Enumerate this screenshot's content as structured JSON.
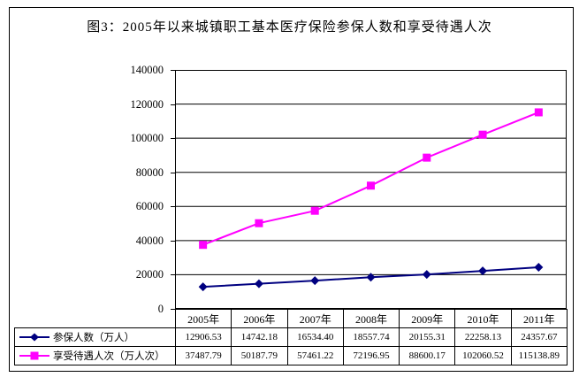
{
  "title": "图3：2005年以来城镇职工基本医疗保险参保人数和享受待遇人次",
  "colors": {
    "background": "#ffffff",
    "axis": "#000000",
    "border": "#000000",
    "series1": "#000080",
    "series2": "#ff00ff"
  },
  "chart_data": {
    "type": "line",
    "title": "图3：2005年以来城镇职工基本医疗保险参保人数和享受待遇人次",
    "categories": [
      "2005年",
      "2006年",
      "2007年",
      "2008年",
      "2009年",
      "2010年",
      "2011年"
    ],
    "series": [
      {
        "name": "参保人数（万人）",
        "color": "#000080",
        "marker": "diamond",
        "values": [
          12906.53,
          14742.18,
          16534.4,
          18557.74,
          20155.31,
          22258.13,
          24357.67
        ],
        "display_values": [
          "12906.53",
          "14742.18",
          "16534.40",
          "18557.74",
          "20155.31",
          "22258.13",
          "24357.67"
        ]
      },
      {
        "name": "享受待遇人次（万人次）",
        "color": "#ff00ff",
        "marker": "square",
        "values": [
          37487.79,
          50187.79,
          57461.22,
          72196.95,
          88600.17,
          102060.52,
          115138.89
        ],
        "display_values": [
          "37487.79",
          "50187.79",
          "57461.22",
          "72196.95",
          "88600.17",
          "102060.52",
          "115138.89"
        ]
      }
    ],
    "xlabel": "",
    "ylabel": "",
    "ylim": [
      0,
      140000
    ],
    "ytick_interval": 20000,
    "yticks_top_to_bottom": [
      "140000",
      "120000",
      "100000",
      "80000",
      "60000",
      "40000",
      "20000",
      "0"
    ],
    "grid": true,
    "legend_position": "data-table-left",
    "has_data_table": true
  }
}
